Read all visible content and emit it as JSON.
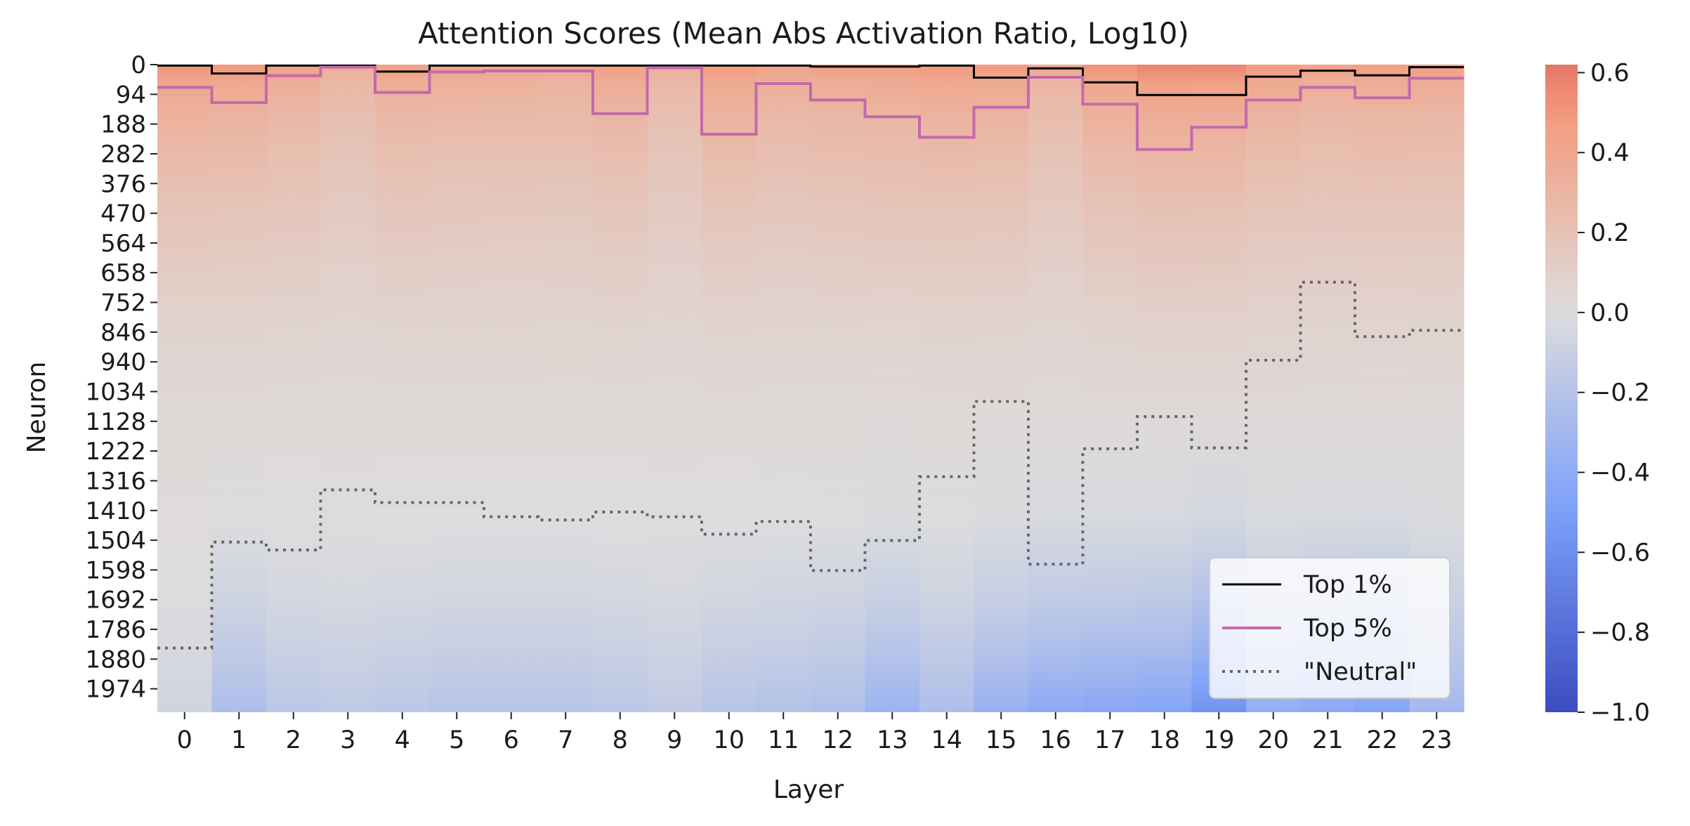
{
  "chart_data": {
    "type": "heatmap",
    "title": "Attention Scores (Mean Abs Activation Ratio, Log10)",
    "xlabel": "Layer",
    "ylabel": "Neuron",
    "x_ticks": [
      "0",
      "1",
      "2",
      "3",
      "4",
      "5",
      "6",
      "7",
      "8",
      "9",
      "10",
      "11",
      "12",
      "13",
      "14",
      "15",
      "16",
      "17",
      "18",
      "19",
      "20",
      "21",
      "22",
      "23"
    ],
    "y_ticks": [
      "0",
      "94",
      "188",
      "282",
      "376",
      "470",
      "564",
      "658",
      "752",
      "846",
      "940",
      "1034",
      "1128",
      "1222",
      "1316",
      "1410",
      "1504",
      "1598",
      "1692",
      "1786",
      "1880",
      "1974"
    ],
    "y_range": [
      0,
      2048
    ],
    "colorbar": {
      "vmin": -1.0,
      "vmax": 0.62,
      "ticks": [
        0.6,
        0.4,
        0.2,
        0.0,
        -0.2,
        -0.4,
        -0.6,
        -0.8,
        -1.0
      ],
      "tick_labels": [
        "0.6",
        "0.4",
        "0.2",
        "0.0",
        "−0.2",
        "−0.4",
        "−0.6",
        "−0.8",
        "−1.0"
      ],
      "colormap": "coolwarm"
    },
    "column_profiles": {
      "top_value": [
        0.52,
        0.5,
        0.45,
        0.36,
        0.45,
        0.43,
        0.42,
        0.41,
        0.46,
        0.35,
        0.49,
        0.44,
        0.46,
        0.48,
        0.5,
        0.49,
        0.38,
        0.52,
        0.58,
        0.57,
        0.49,
        0.45,
        0.47,
        0.46
      ],
      "bottom_value": [
        -0.07,
        -0.25,
        -0.18,
        -0.16,
        -0.18,
        -0.2,
        -0.2,
        -0.2,
        -0.18,
        -0.15,
        -0.2,
        -0.22,
        -0.24,
        -0.34,
        -0.25,
        -0.36,
        -0.42,
        -0.44,
        -0.46,
        -0.58,
        -0.38,
        -0.42,
        -0.46,
        -0.3
      ]
    },
    "series": [
      {
        "name": "Top 1%",
        "color": "#000000",
        "style": "solid",
        "values": [
          3,
          28,
          3,
          3,
          22,
          3,
          3,
          3,
          3,
          3,
          3,
          3,
          6,
          6,
          3,
          41,
          12,
          56,
          96,
          96,
          38,
          19,
          34,
          8
        ]
      },
      {
        "name": "Top 5%",
        "color": "#c36aaa",
        "style": "solid",
        "values": [
          72,
          120,
          35,
          8,
          88,
          23,
          20,
          20,
          155,
          10,
          220,
          60,
          112,
          165,
          230,
          135,
          40,
          125,
          268,
          198,
          112,
          72,
          105,
          43
        ]
      },
      {
        "name": "\"Neutral\"",
        "color": "#666666",
        "style": "dotted",
        "values": [
          1845,
          1510,
          1535,
          1345,
          1385,
          1385,
          1430,
          1440,
          1415,
          1430,
          1485,
          1445,
          1600,
          1505,
          1303,
          1065,
          1580,
          1215,
          1113,
          1212,
          935,
          688,
          860,
          840
        ]
      }
    ],
    "legend": {
      "position": "lower-right"
    }
  }
}
